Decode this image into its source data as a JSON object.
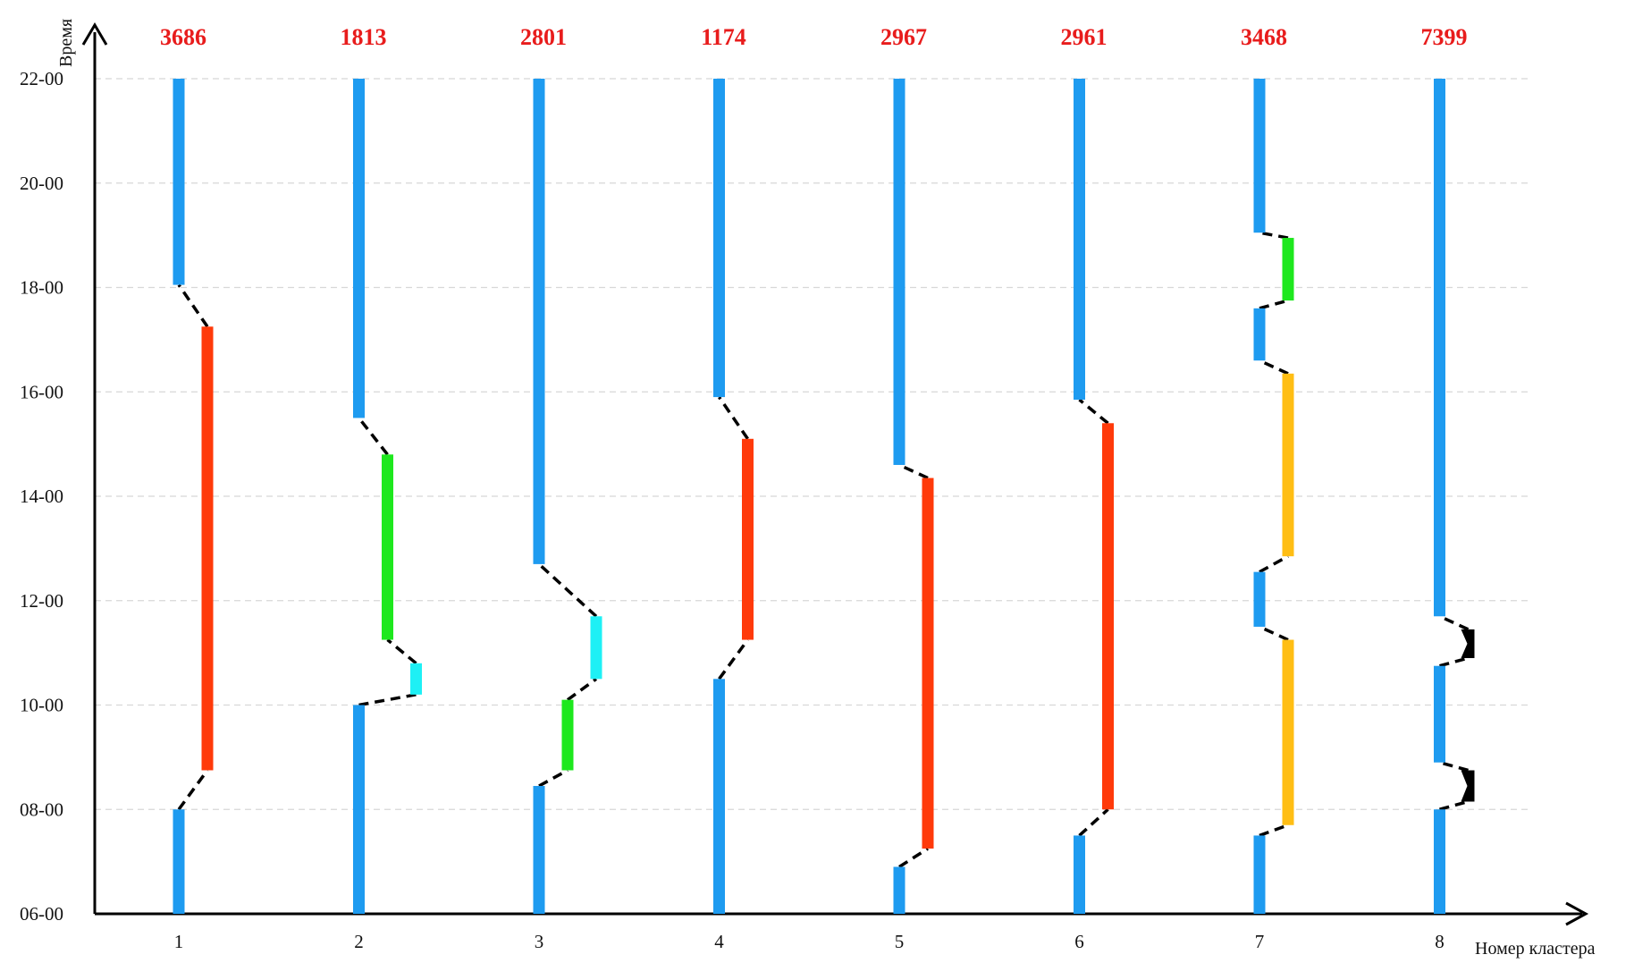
{
  "axes": {
    "y_title": "Время",
    "x_title": "Номер кластера",
    "y_ticks": [
      {
        "label": "22-00",
        "hour": 22
      },
      {
        "label": "20-00",
        "hour": 20
      },
      {
        "label": "18-00",
        "hour": 18
      },
      {
        "label": "16-00",
        "hour": 16
      },
      {
        "label": "14-00",
        "hour": 14
      },
      {
        "label": "12-00",
        "hour": 12
      },
      {
        "label": "10-00",
        "hour": 10
      },
      {
        "label": "08-00",
        "hour": 8
      },
      {
        "label": "06-00",
        "hour": 6
      }
    ],
    "y_range": [
      6,
      22
    ],
    "grid": true
  },
  "colors": {
    "home": "#1e9bf0",
    "red": "#ff3a0a",
    "green": "#1ee81e",
    "cyan": "#1ef0f5",
    "orange": "#ffbe14",
    "black": "#000000",
    "count": "#e81c1c",
    "grid": "#d8d8d8"
  },
  "clusters": [
    {
      "label": "1",
      "count": "3686",
      "segments": [
        {
          "from": 6,
          "to": 8,
          "color": "home",
          "offset": 0
        },
        {
          "from": 8.75,
          "to": 17.25,
          "color": "red",
          "offset": 1
        },
        {
          "from": 18.05,
          "to": 22,
          "color": "home",
          "offset": 0
        }
      ]
    },
    {
      "label": "2",
      "count": "1813",
      "segments": [
        {
          "from": 6,
          "to": 10,
          "color": "home",
          "offset": 0
        },
        {
          "from": 10.2,
          "to": 10.8,
          "color": "cyan",
          "offset": 2
        },
        {
          "from": 11.25,
          "to": 14.8,
          "color": "green",
          "offset": 1
        },
        {
          "from": 15.5,
          "to": 22,
          "color": "home",
          "offset": 0
        }
      ]
    },
    {
      "label": "3",
      "count": "2801",
      "segments": [
        {
          "from": 6,
          "to": 8.45,
          "color": "home",
          "offset": 0
        },
        {
          "from": 8.75,
          "to": 10.1,
          "color": "green",
          "offset": 1
        },
        {
          "from": 10.5,
          "to": 11.7,
          "color": "cyan",
          "offset": 2
        },
        {
          "from": 12.7,
          "to": 22,
          "color": "home",
          "offset": 0
        }
      ]
    },
    {
      "label": "4",
      "count": "1174",
      "segments": [
        {
          "from": 6,
          "to": 10.5,
          "color": "home",
          "offset": 0
        },
        {
          "from": 11.25,
          "to": 15.1,
          "color": "red",
          "offset": 1
        },
        {
          "from": 15.9,
          "to": 22,
          "color": "home",
          "offset": 0
        }
      ]
    },
    {
      "label": "5",
      "count": "2967",
      "segments": [
        {
          "from": 6,
          "to": 6.9,
          "color": "home",
          "offset": 0
        },
        {
          "from": 7.25,
          "to": 14.35,
          "color": "red",
          "offset": 1
        },
        {
          "from": 14.6,
          "to": 22,
          "color": "home",
          "offset": 0
        }
      ]
    },
    {
      "label": "6",
      "count": "2961",
      "segments": [
        {
          "from": 6,
          "to": 7.5,
          "color": "home",
          "offset": 0
        },
        {
          "from": 8,
          "to": 15.4,
          "color": "red",
          "offset": 1
        },
        {
          "from": 15.85,
          "to": 22,
          "color": "home",
          "offset": 0
        }
      ]
    },
    {
      "label": "7",
      "count": "3468",
      "segments": [
        {
          "from": 6,
          "to": 7.5,
          "color": "home",
          "offset": 0
        },
        {
          "from": 7.7,
          "to": 11.25,
          "color": "orange",
          "offset": 1
        },
        {
          "from": 11.5,
          "to": 12.55,
          "color": "home",
          "offset": 0
        },
        {
          "from": 12.85,
          "to": 16.35,
          "color": "orange",
          "offset": 1
        },
        {
          "from": 16.6,
          "to": 17.6,
          "color": "home",
          "offset": 0
        },
        {
          "from": 17.75,
          "to": 18.95,
          "color": "green",
          "offset": 1
        },
        {
          "from": 19.05,
          "to": 22,
          "color": "home",
          "offset": 0
        }
      ]
    },
    {
      "label": "8",
      "count": "7399",
      "segments": [
        {
          "from": 6,
          "to": 8,
          "color": "home",
          "offset": 0
        },
        {
          "from": 8.15,
          "to": 8.75,
          "color": "black",
          "offset": 1
        },
        {
          "from": 8.9,
          "to": 10.75,
          "color": "home",
          "offset": 0
        },
        {
          "from": 10.9,
          "to": 11.45,
          "color": "black",
          "offset": 1
        },
        {
          "from": 11.7,
          "to": 22,
          "color": "home",
          "offset": 0
        }
      ]
    }
  ]
}
